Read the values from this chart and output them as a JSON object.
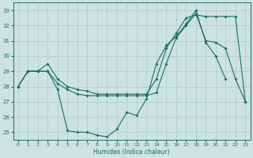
{
  "xlabel": "Humidex (Indice chaleur)",
  "xlim": [
    -0.5,
    23.5
  ],
  "ylim": [
    24.5,
    33.5
  ],
  "yticks": [
    25,
    26,
    27,
    28,
    29,
    30,
    31,
    32,
    33
  ],
  "xticks": [
    0,
    1,
    2,
    3,
    4,
    5,
    6,
    7,
    8,
    9,
    10,
    11,
    12,
    13,
    14,
    15,
    16,
    17,
    18,
    19,
    20,
    21,
    22,
    23
  ],
  "bg_color": "#cde3e1",
  "grid_color": "#aecfcd",
  "line_color": "#1a6e64",
  "series": [
    {
      "x": [
        0,
        1,
        2,
        3,
        4,
        5,
        6,
        7,
        8,
        9,
        10,
        11,
        12,
        13,
        14,
        15,
        16,
        17,
        18,
        19,
        20,
        21
      ],
      "y": [
        28,
        29,
        29,
        29,
        27.8,
        25.1,
        25.0,
        25.0,
        24.8,
        24.7,
        25.2,
        26.3,
        26.1,
        27.2,
        29.5,
        30.7,
        31.3,
        32.1,
        33.0,
        30.9,
        30.0,
        28.5
      ]
    },
    {
      "x": [
        0,
        1,
        2,
        3,
        4,
        5,
        6,
        7,
        8,
        9,
        10,
        11,
        12,
        13,
        14,
        15,
        16,
        17,
        18,
        19,
        20,
        21,
        22,
        23
      ],
      "y": [
        28,
        29,
        29,
        29.5,
        28.5,
        28.0,
        27.8,
        27.7,
        27.5,
        27.5,
        27.5,
        27.5,
        27.5,
        27.5,
        28.5,
        30.5,
        31.5,
        32.5,
        32.7,
        32.6,
        32.6,
        32.6,
        32.6,
        27.0
      ]
    },
    {
      "x": [
        0,
        1,
        2,
        3,
        4,
        5,
        6,
        7,
        8,
        9,
        10,
        11,
        12,
        13,
        14,
        15,
        16,
        17,
        18,
        19,
        20,
        21,
        22,
        23
      ],
      "y": [
        28,
        29,
        29,
        29,
        28.2,
        27.8,
        27.5,
        27.4,
        27.4,
        27.4,
        27.4,
        27.4,
        27.4,
        27.4,
        27.6,
        29.5,
        31.2,
        32.0,
        32.8,
        31.0,
        30.9,
        30.5,
        28.5,
        27.0
      ]
    }
  ]
}
